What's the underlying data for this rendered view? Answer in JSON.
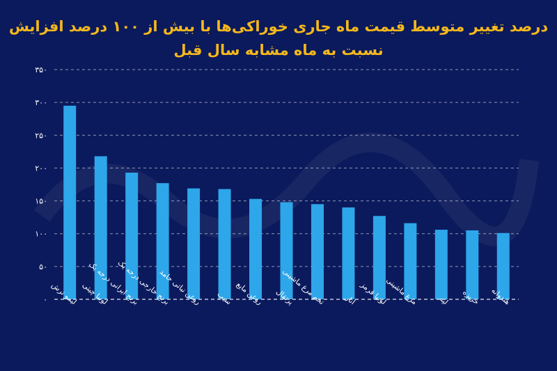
{
  "chart_data": {
    "type": "bar",
    "title_line1": "درصد تغییر متوسط قیمت ماه جاری خوراکی‌ها با بیش از ۱۰۰ درصد افزایش",
    "title_line2": "نسبت به ماه مشابه سال قبل",
    "categories": [
      "لیمو ترش",
      "لوبیا چیتی",
      "برنج ایرانی درجه یک",
      "برنج خارجی درجه یک",
      "روغن نباتی جامد",
      "سیب",
      "روغن مایع",
      "پرتقال",
      "تخم مرغ ماشینی",
      "انار",
      "لوبیا قرمز",
      "مرغ ماشینی",
      "لپه",
      "خربزه",
      "هندوانه"
    ],
    "values": [
      295,
      218,
      193,
      177,
      169,
      168,
      153,
      148,
      145,
      140,
      127,
      116,
      106,
      105,
      101
    ],
    "yticks": [
      0,
      50,
      100,
      150,
      200,
      250,
      300,
      350
    ],
    "ytick_labels": [
      "۰",
      "۵۰",
      "۱۰۰",
      "۱۵۰",
      "۲۰۰",
      "۲۵۰",
      "۳۰۰",
      "۳۵۰"
    ],
    "ylim": [
      0,
      350
    ],
    "grid": true,
    "colors": {
      "background": "#0b1a5c",
      "bar": "#2ea6ea",
      "title": "#f5b81c",
      "text": "#ffffff"
    }
  }
}
